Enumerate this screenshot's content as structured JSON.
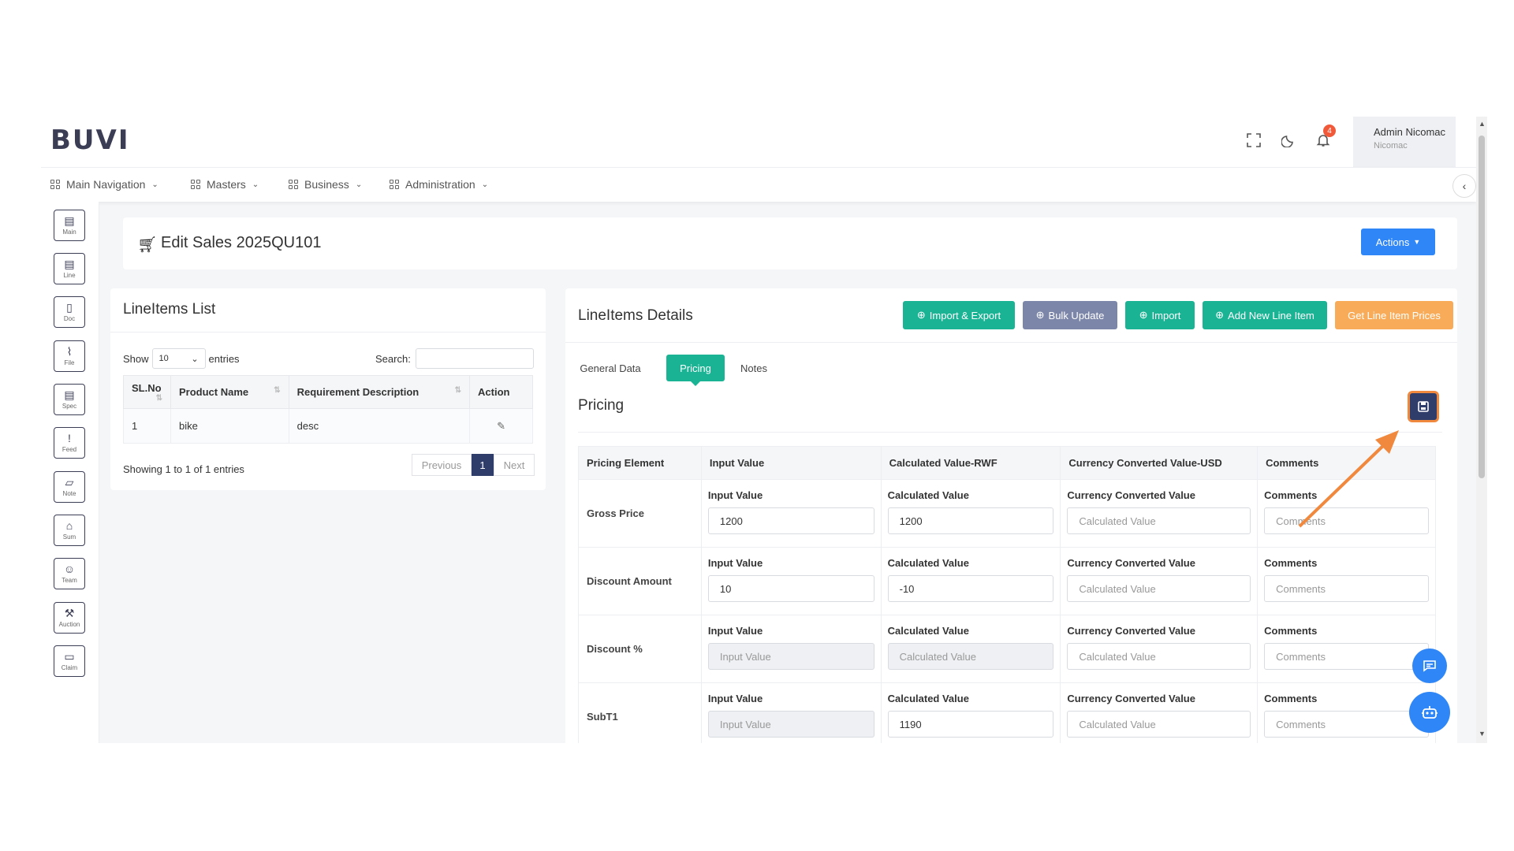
{
  "header": {
    "logo": "BUVI",
    "notification_count": "4",
    "user_name": "Admin Nicomac",
    "user_org": "Nicomac"
  },
  "nav": {
    "items": [
      {
        "label": "Main Navigation"
      },
      {
        "label": "Masters"
      },
      {
        "label": "Business"
      },
      {
        "label": "Administration"
      }
    ]
  },
  "sidebar": {
    "items": [
      {
        "label": "Main",
        "icon": "document-icon"
      },
      {
        "label": "Line",
        "icon": "list-icon"
      },
      {
        "label": "Doc",
        "icon": "doc-icon"
      },
      {
        "label": "File",
        "icon": "paperclip-icon"
      },
      {
        "label": "Spec",
        "icon": "spec-icon"
      },
      {
        "label": "Feed",
        "icon": "feedback-icon"
      },
      {
        "label": "Note",
        "icon": "note-icon"
      },
      {
        "label": "Sum",
        "icon": "summary-icon"
      },
      {
        "label": "Team",
        "icon": "team-icon"
      },
      {
        "label": "Auction",
        "icon": "gavel-icon"
      },
      {
        "label": "Claim",
        "icon": "chat-icon"
      }
    ]
  },
  "page": {
    "title": "Edit Sales 2025QU101",
    "actions_label": "Actions",
    "close_label": "✕"
  },
  "lineitems_list": {
    "title": "LineItems List",
    "show_label": "Show",
    "entries_label": "entries",
    "page_size": "10",
    "search_label": "Search:",
    "columns": [
      "SL.No",
      "Product Name",
      "Requirement Description",
      "Action"
    ],
    "rows": [
      {
        "sl": "1",
        "product": "bike",
        "desc": "desc"
      }
    ],
    "footer": "Showing 1 to 1 of 1 entries",
    "prev_label": "Previous",
    "current_page": "1",
    "next_label": "Next"
  },
  "lineitems_details": {
    "title": "LineItems Details",
    "buttons": {
      "import_export": "Import & Export",
      "bulk_update": "Bulk Update",
      "import": "Import",
      "add_new": "Add New Line Item",
      "get_prices": "Get Line Item Prices"
    },
    "tabs": [
      "General Data",
      "Pricing",
      "Notes"
    ],
    "active_tab": "Pricing",
    "section_title": "Pricing",
    "columns": [
      "Pricing Element",
      "Input Value",
      "Calculated Value-RWF",
      "Currency Converted Value-USD",
      "Comments"
    ],
    "cell_labels": {
      "input": "Input Value",
      "calculated": "Calculated Value",
      "converted": "Currency Converted Value",
      "comments": "Comments"
    },
    "placeholders": {
      "input": "Input Value",
      "calculated": "Calculated Value",
      "comments": "Comments"
    },
    "rows": [
      {
        "element": "Gross Price",
        "input": "1200",
        "calculated": "1200",
        "converted": "",
        "comments": ""
      },
      {
        "element": "Discount Amount",
        "input": "10",
        "calculated": "-10",
        "converted": "",
        "comments": ""
      },
      {
        "element": "Discount %",
        "input": "",
        "calculated": "",
        "converted": "",
        "comments": ""
      },
      {
        "element": "SubT1",
        "input": "",
        "calculated": "1190",
        "converted": "",
        "comments": ""
      }
    ]
  },
  "colors": {
    "brand": "#3b3d55",
    "teal": "#1ab394",
    "slate": "#7b86a8",
    "amber": "#f8ac59",
    "primary": "#2f86f6",
    "danger": "#ed5565",
    "highlight": "#f0883e"
  }
}
